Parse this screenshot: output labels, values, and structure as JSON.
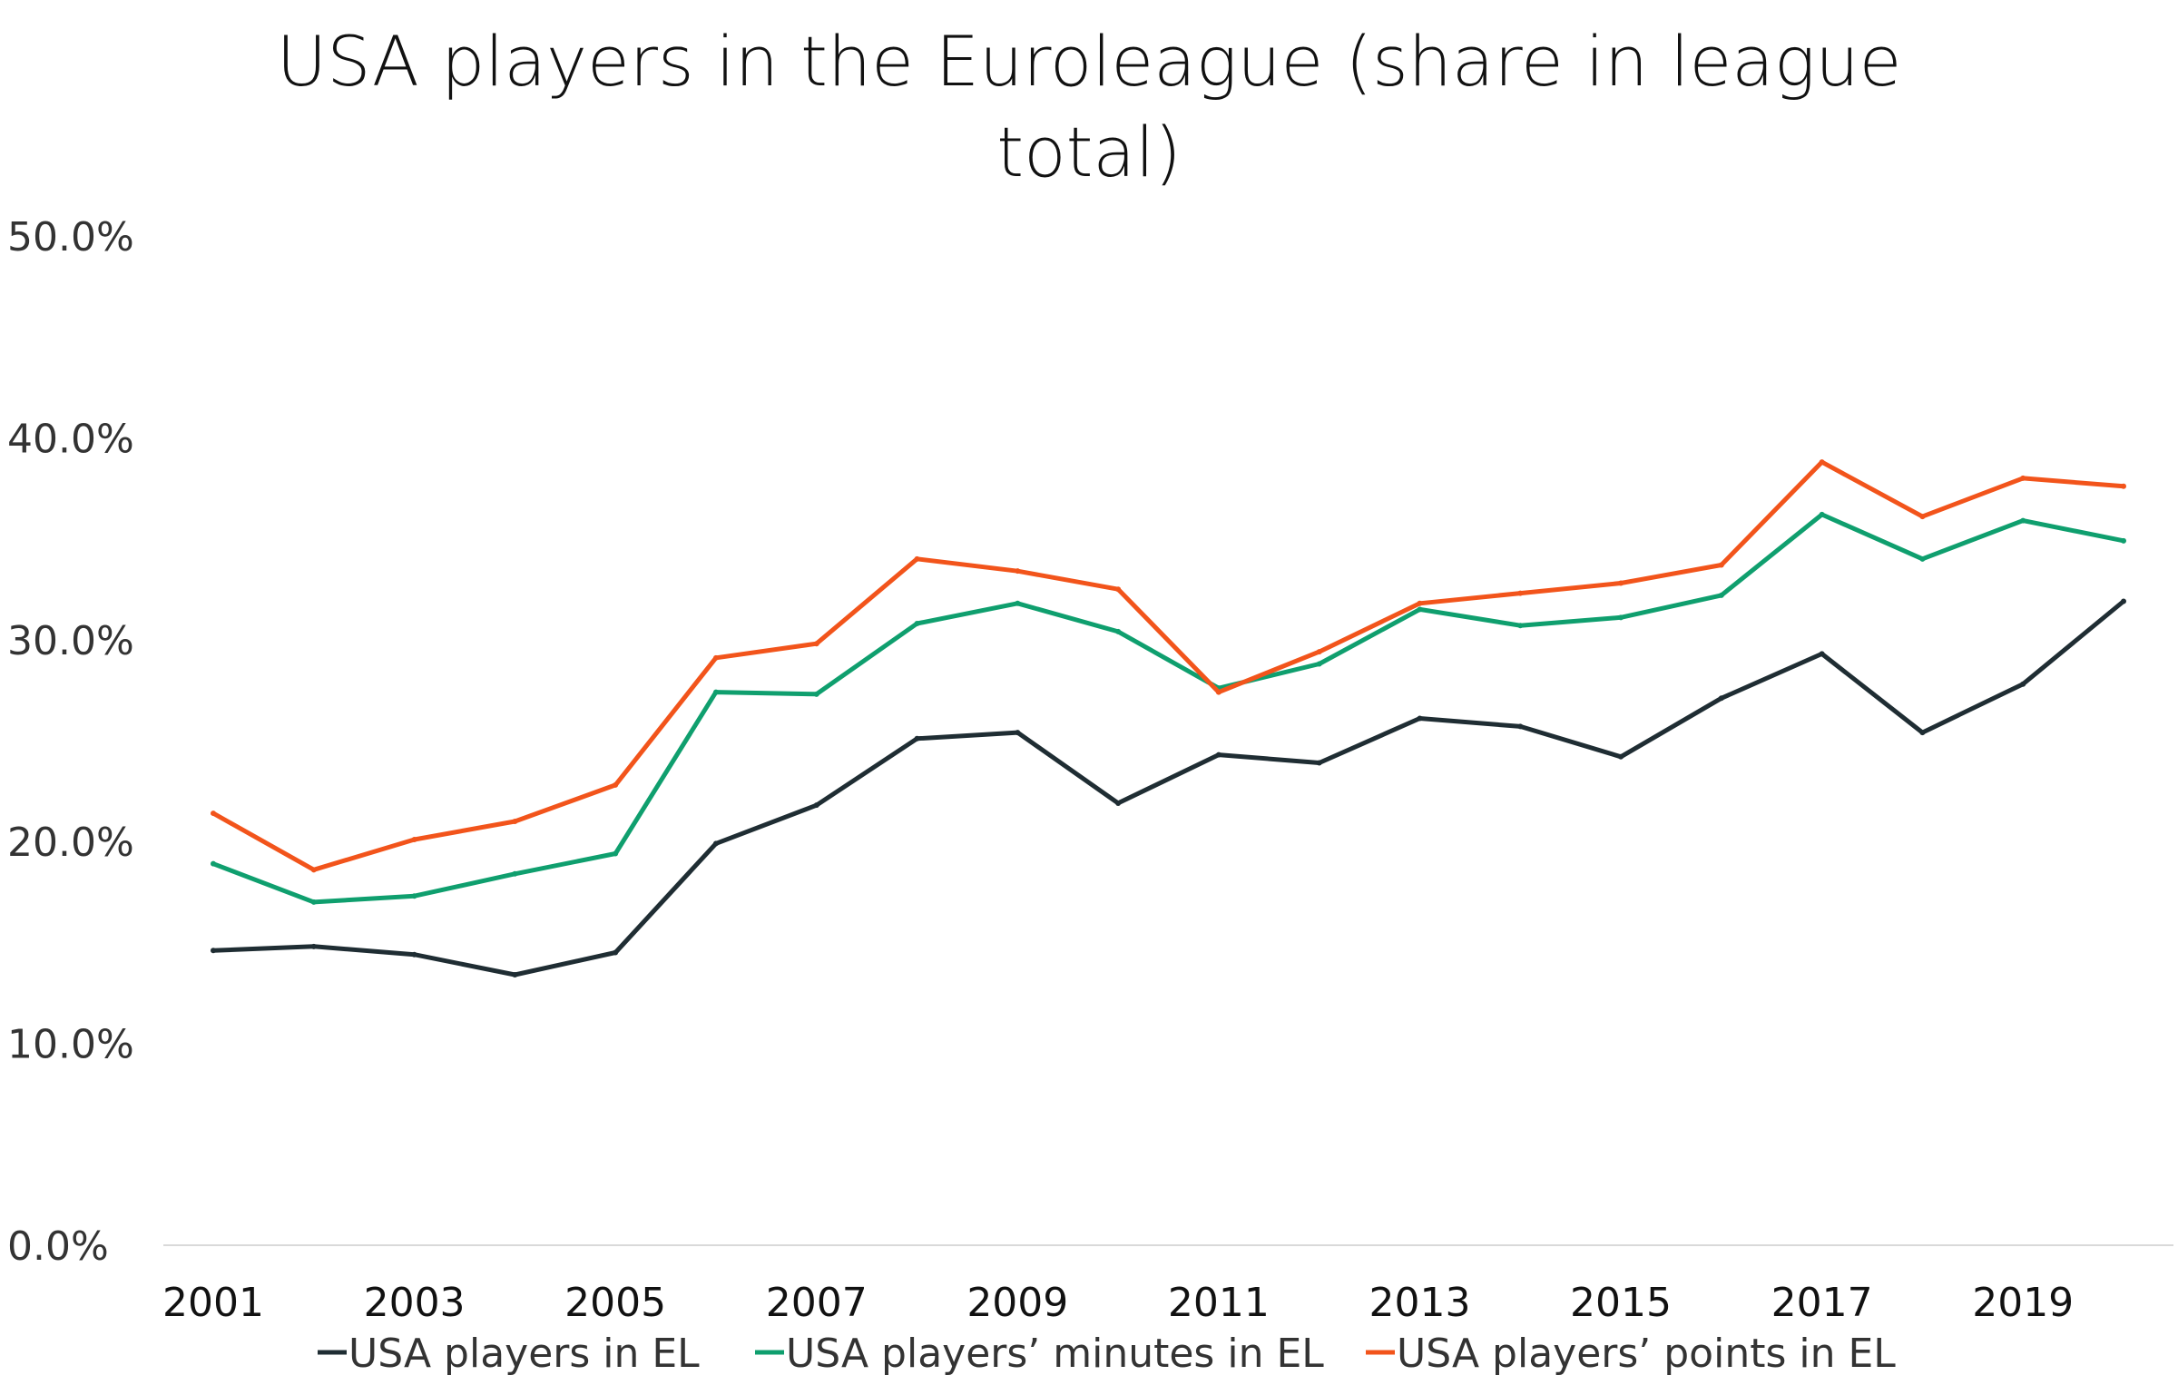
{
  "chart_data": {
    "type": "line",
    "title_lines": [
      "USA players in the Euroleague (share in league",
      "total)"
    ],
    "xlabel": "",
    "ylabel": "",
    "x": [
      2001,
      2002,
      2003,
      2004,
      2005,
      2006,
      2007,
      2008,
      2009,
      2010,
      2011,
      2012,
      2013,
      2014,
      2015,
      2016,
      2017,
      2018,
      2019,
      2020
    ],
    "x_tick_labels": [
      "2001",
      "2003",
      "2005",
      "2007",
      "2009",
      "2011",
      "2013",
      "2015",
      "2017",
      "2019"
    ],
    "y_tick_labels": [
      "0.0%",
      "10.0%",
      "20.0%",
      "30.0%",
      "40.0%",
      "50.0%"
    ],
    "ylim": [
      0,
      50
    ],
    "grid": false,
    "legend_position": "bottom",
    "series": [
      {
        "name": "USA players in EL",
        "color": "#1f2d33",
        "values": [
          14.6,
          14.8,
          14.4,
          13.4,
          14.5,
          19.9,
          21.8,
          25.1,
          25.4,
          21.9,
          24.3,
          23.9,
          26.1,
          25.7,
          24.2,
          27.1,
          29.3,
          25.4,
          27.8,
          31.9
        ]
      },
      {
        "name": "USA players’ minutes in EL",
        "color": "#0f9f6e",
        "values": [
          18.9,
          17.0,
          17.3,
          18.4,
          19.4,
          27.4,
          27.3,
          30.8,
          31.8,
          30.4,
          27.6,
          28.8,
          31.5,
          30.7,
          31.1,
          32.2,
          36.2,
          34.0,
          35.9,
          34.9
        ]
      },
      {
        "name": "USA players’ points in EL",
        "color": "#f2541b",
        "values": [
          21.4,
          18.6,
          20.1,
          21.0,
          22.8,
          29.1,
          29.8,
          34.0,
          33.4,
          32.5,
          27.4,
          29.4,
          31.8,
          32.3,
          32.8,
          33.7,
          38.8,
          36.1,
          38.0,
          37.6
        ]
      }
    ]
  }
}
